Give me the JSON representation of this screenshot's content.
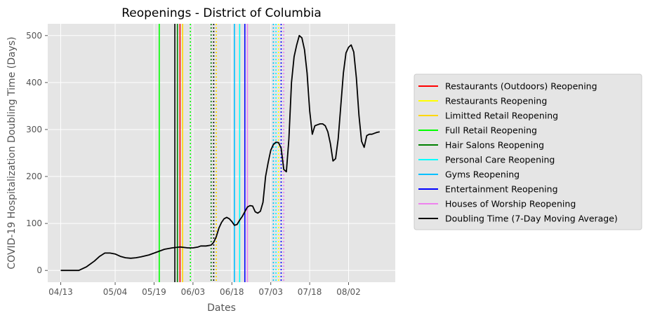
{
  "chart_data": {
    "type": "line",
    "title": "Reopenings - District of Columbia",
    "xlabel": "Dates",
    "ylabel": "COVID-19 Hospitalization Doubling Time (Days)",
    "x_ticks": [
      "04/13",
      "05/04",
      "05/19",
      "06/03",
      "06/18",
      "07/03",
      "07/18",
      "08/02"
    ],
    "y_ticks": [
      0,
      100,
      200,
      300,
      400,
      500
    ],
    "ylim": [
      -25,
      525
    ],
    "xlim": [
      "2020-04-08",
      "2020-08-20"
    ],
    "grid": true,
    "legend_placement": "outside-right",
    "series": [
      {
        "name": "Doubling Time (7-Day Moving Average)",
        "color": "#000000",
        "x": [
          "2020-04-13",
          "2020-04-20",
          "2020-04-23",
          "2020-04-26",
          "2020-04-28",
          "2020-04-30",
          "2020-05-02",
          "2020-05-04",
          "2020-05-06",
          "2020-05-08",
          "2020-05-10",
          "2020-05-12",
          "2020-05-14",
          "2020-05-17",
          "2020-05-20",
          "2020-05-23",
          "2020-05-26",
          "2020-05-29",
          "2020-06-01",
          "2020-06-03",
          "2020-06-05",
          "2020-06-06",
          "2020-06-07",
          "2020-06-08",
          "2020-06-09",
          "2020-06-10",
          "2020-06-11",
          "2020-06-12",
          "2020-06-13",
          "2020-06-14",
          "2020-06-15",
          "2020-06-16",
          "2020-06-17",
          "2020-06-18",
          "2020-06-19",
          "2020-06-20",
          "2020-06-21",
          "2020-06-22",
          "2020-06-23",
          "2020-06-24",
          "2020-06-25",
          "2020-06-26",
          "2020-06-27",
          "2020-06-28",
          "2020-06-29",
          "2020-06-30",
          "2020-07-01",
          "2020-07-02",
          "2020-07-03",
          "2020-07-04",
          "2020-07-05",
          "2020-07-06",
          "2020-07-07",
          "2020-07-08",
          "2020-07-09",
          "2020-07-10",
          "2020-07-11",
          "2020-07-12",
          "2020-07-13",
          "2020-07-14",
          "2020-07-15",
          "2020-07-16",
          "2020-07-17",
          "2020-07-18",
          "2020-07-19",
          "2020-07-20",
          "2020-07-21",
          "2020-07-22",
          "2020-07-23",
          "2020-07-24",
          "2020-07-25",
          "2020-07-26",
          "2020-07-27",
          "2020-07-28",
          "2020-07-29",
          "2020-07-30",
          "2020-07-31",
          "2020-08-01",
          "2020-08-02",
          "2020-08-03",
          "2020-08-04",
          "2020-08-05",
          "2020-08-06",
          "2020-08-07",
          "2020-08-08",
          "2020-08-09",
          "2020-08-10",
          "2020-08-11",
          "2020-08-12",
          "2020-08-13",
          "2020-08-14"
        ],
        "y": [
          0,
          0,
          8,
          20,
          30,
          37,
          37,
          35,
          30,
          27,
          26,
          27,
          29,
          33,
          39,
          45,
          48,
          50,
          48,
          48,
          50,
          52,
          52,
          52,
          53,
          54,
          60,
          72,
          90,
          102,
          110,
          113,
          110,
          104,
          96,
          98,
          107,
          115,
          125,
          135,
          138,
          137,
          125,
          122,
          126,
          145,
          200,
          230,
          256,
          268,
          273,
          272,
          260,
          215,
          210,
          280,
          400,
          455,
          480,
          500,
          495,
          470,
          420,
          340,
          290,
          308,
          310,
          312,
          312,
          308,
          295,
          270,
          233,
          238,
          280,
          350,
          420,
          463,
          475,
          480,
          465,
          410,
          330,
          275,
          262,
          287,
          290,
          290,
          292,
          294,
          295
        ]
      }
    ],
    "reopening_lines": [
      {
        "name": "Restaurants (Outdoors) Reopening",
        "color": "#ff0000",
        "dates": [
          "2020-05-29"
        ]
      },
      {
        "name": "Restaurants Reopening",
        "color": "#ffff00",
        "dates": [
          "2020-06-12",
          "2020-07-06"
        ]
      },
      {
        "name": "Limitted Retail Reopening",
        "color": "#ffd700",
        "dates": [
          "2020-05-30",
          "2020-06-12"
        ]
      },
      {
        "name": "Full Retail Reopening",
        "color": "#00ff00",
        "dates": [
          "2020-05-21",
          "2020-06-02"
        ]
      },
      {
        "name": "Hair Salons Reopening",
        "color": "#008000",
        "dates": [
          "2020-05-28",
          "2020-06-10"
        ]
      },
      {
        "name": "Personal Care Reopening",
        "color": "#00ffff",
        "dates": [
          "2020-06-21",
          "2020-07-05"
        ]
      },
      {
        "name": "Gyms Reopening",
        "color": "#00bfff",
        "dates": [
          "2020-06-19",
          "2020-07-04"
        ]
      },
      {
        "name": "Entertainment Reopening",
        "color": "#0000ff",
        "dates": [
          "2020-06-23",
          "2020-07-07"
        ]
      },
      {
        "name": "Houses of Worship Reopening",
        "color": "#ee82ee",
        "dates": [
          "2020-06-24",
          "2020-07-08"
        ]
      },
      {
        "name": "",
        "color": "#000000",
        "dates": [
          "2020-05-27",
          "2020-06-11"
        ]
      }
    ],
    "reopening_line_styles": {
      "2020-05-29": "solid",
      "2020-06-12": "dotted",
      "2020-07-06": "dotted",
      "2020-05-30": "solid",
      "2020-05-21": "solid",
      "2020-06-02": "dotted",
      "2020-05-28": "solid",
      "2020-06-10": "dotted",
      "2020-06-21": "solid",
      "2020-07-05": "dotted",
      "2020-06-19": "solid",
      "2020-07-04": "dotted",
      "2020-06-23": "solid",
      "2020-07-07": "dotted",
      "2020-06-24": "solid",
      "2020-07-08": "dotted",
      "2020-05-27": "solid",
      "2020-06-11": "dotted"
    },
    "legend": [
      {
        "label": "Restaurants (Outdoors) Reopening",
        "color": "#ff0000"
      },
      {
        "label": "Restaurants Reopening",
        "color": "#ffff00"
      },
      {
        "label": "Limitted Retail Reopening",
        "color": "#ffd700"
      },
      {
        "label": "Full Retail Reopening",
        "color": "#00ff00"
      },
      {
        "label": "Hair Salons Reopening",
        "color": "#008000"
      },
      {
        "label": "Personal Care Reopening",
        "color": "#00ffff"
      },
      {
        "label": "Gyms Reopening",
        "color": "#00bfff"
      },
      {
        "label": "Entertainment Reopening",
        "color": "#0000ff"
      },
      {
        "label": "Houses of Worship Reopening",
        "color": "#ee82ee"
      },
      {
        "label": "Doubling Time (7-Day Moving Average)",
        "color": "#000000"
      }
    ]
  },
  "colors": {
    "plot_background": "#e5e5e5",
    "grid": "#ffffff",
    "legend_background": "#e5e5e5",
    "legend_border": "#cccccc"
  }
}
